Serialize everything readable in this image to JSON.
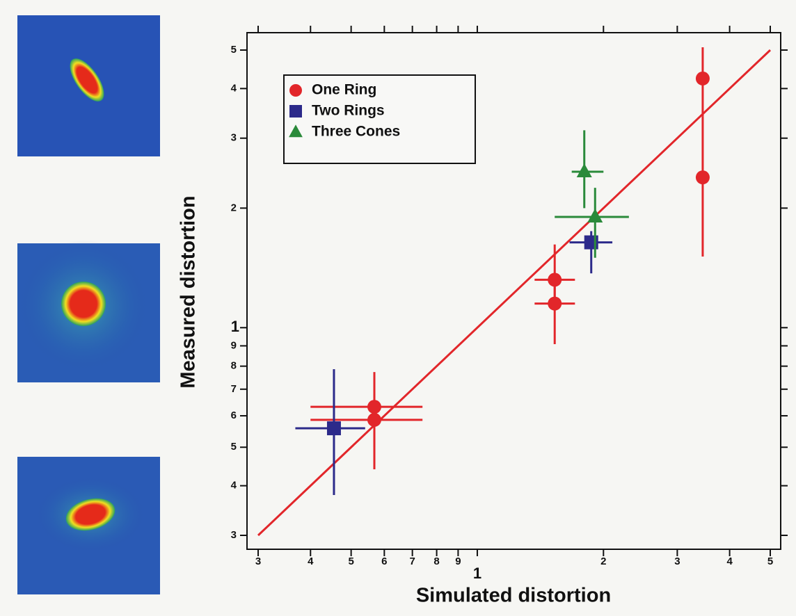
{
  "chart_data": {
    "type": "scatter",
    "xlabel": "Simulated distortion",
    "ylabel": "Measured distortion",
    "log_x": true,
    "log_y": true,
    "xlim": [
      0.3,
      5
    ],
    "ylim": [
      0.3,
      5
    ],
    "xticks": [
      {
        "value": 0.3,
        "label": "3"
      },
      {
        "value": 0.4,
        "label": "4"
      },
      {
        "value": 0.5,
        "label": "5"
      },
      {
        "value": 0.6,
        "label": "6"
      },
      {
        "value": 0.7,
        "label": "7"
      },
      {
        "value": 0.8,
        "label": "8"
      },
      {
        "value": 0.9,
        "label": "9"
      },
      1,
      2,
      3,
      4,
      5
    ],
    "yticks": [
      {
        "value": 0.3,
        "label": "3"
      },
      {
        "value": 0.4,
        "label": "4"
      },
      {
        "value": 0.5,
        "label": "5"
      },
      {
        "value": 0.6,
        "label": "6"
      },
      {
        "value": 0.7,
        "label": "7"
      },
      {
        "value": 0.8,
        "label": "8"
      },
      {
        "value": 0.9,
        "label": "9"
      },
      1,
      2,
      3,
      4,
      5
    ],
    "legend": "upper left",
    "fit_line": {
      "x": [
        0.3,
        5
      ],
      "y": [
        0.3,
        5
      ],
      "color": "#e2262a"
    },
    "series": [
      {
        "name": "One Ring",
        "color": "#e2262a",
        "marker": "circle",
        "x": [
          0.568,
          0.568,
          1.53,
          1.53,
          3.45,
          3.45
        ],
        "values": [
          0.632,
          0.586,
          1.32,
          1.15,
          4.24,
          2.39
        ],
        "xlow": [
          0.4,
          0.4,
          1.37,
          1.37,
          null,
          null
        ],
        "xhigh": [
          0.74,
          0.74,
          1.71,
          1.71,
          null,
          null
        ],
        "ylow": [
          0.5,
          0.44,
          1.15,
          0.909,
          3.4,
          1.51
        ],
        "yhigh": [
          0.773,
          0.68,
          1.62,
          1.32,
          5.08,
          3.4
        ]
      },
      {
        "name": "Two Rings",
        "color": "#2c2a8a",
        "marker": "square",
        "x": [
          0.455,
          1.87
        ],
        "values": [
          0.558,
          1.64
        ],
        "xlow": [
          0.368,
          1.66
        ],
        "xhigh": [
          0.54,
          2.1
        ],
        "ylow": [
          0.379,
          1.37
        ],
        "yhigh": [
          0.786,
          1.75
        ]
      },
      {
        "name": "Three Cones",
        "color": "#2a8a3a",
        "marker": "triangle",
        "x": [
          1.8,
          1.91
        ],
        "values": [
          2.47,
          1.9
        ],
        "xlow": [
          1.68,
          1.53
        ],
        "xhigh": [
          2.0,
          2.3
        ],
        "ylow": [
          2.0,
          1.5
        ],
        "yhigh": [
          3.14,
          2.25
        ]
      }
    ]
  }
}
